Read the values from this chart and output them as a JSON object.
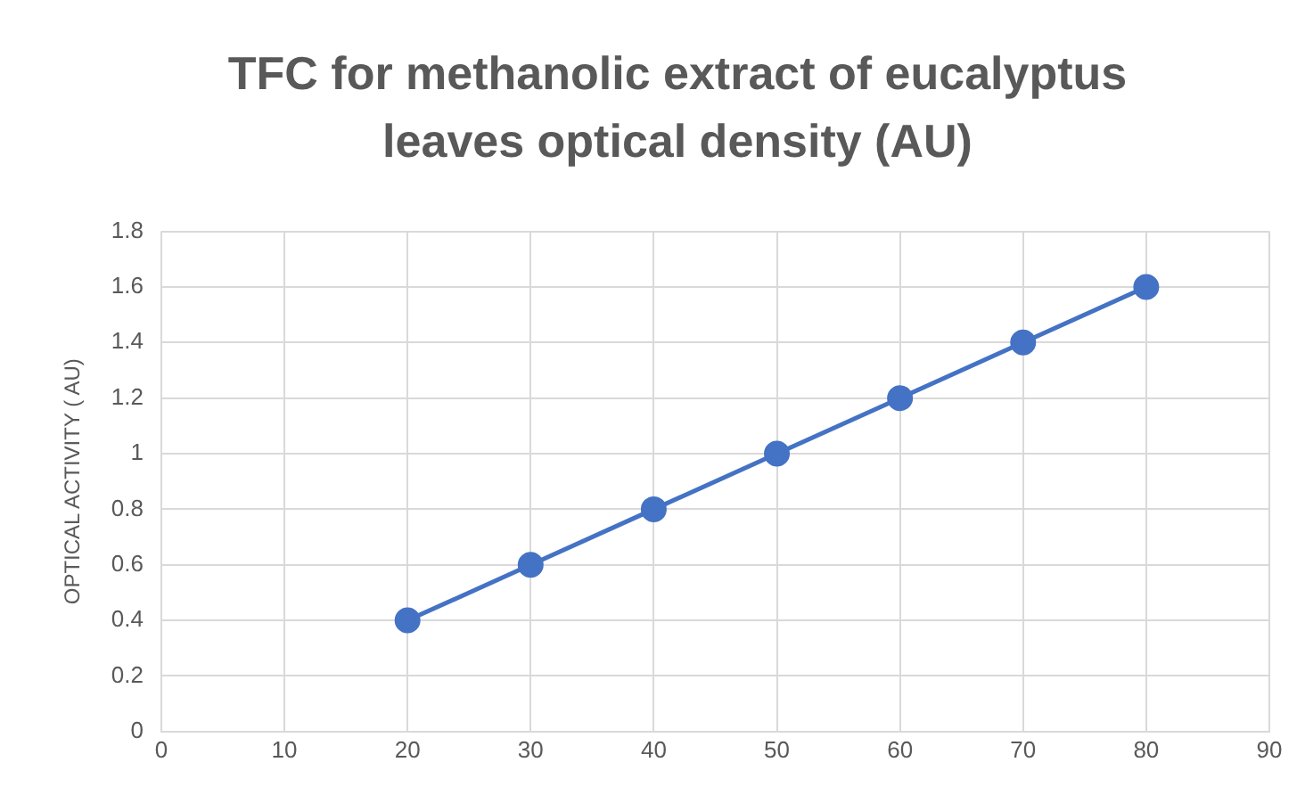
{
  "chart_data": {
    "type": "line",
    "title": "TFC for methanolic extract of eucalyptus leaves optical density (AU)",
    "ylabel": "OPTICAL ACTIVITY ( AU)",
    "x": [
      20,
      30,
      40,
      50,
      60,
      70,
      80
    ],
    "values": [
      0.4,
      0.6,
      0.8,
      1.0,
      1.2,
      1.4,
      1.6
    ],
    "color": "#4472c4",
    "xlim": [
      0,
      90
    ],
    "xticks": [
      0,
      10,
      20,
      30,
      40,
      50,
      60,
      70,
      80,
      90
    ],
    "ylim": [
      0,
      1.8
    ],
    "yticks": [
      0,
      0.2,
      0.4,
      0.6,
      0.8,
      1,
      1.2,
      1.4,
      1.6,
      1.8
    ],
    "grid": true,
    "marker": "circle"
  }
}
